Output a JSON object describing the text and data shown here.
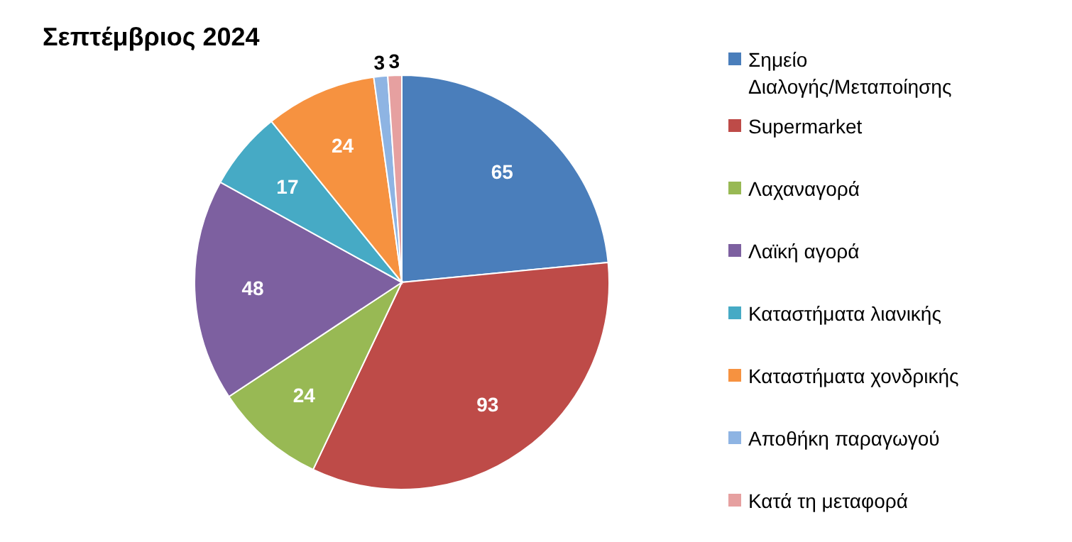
{
  "chart_data": {
    "type": "pie",
    "title": "Σεπτέμβριος 2024",
    "categories": [
      "Σημείο Διαλογής/Μεταποίησης",
      "Supermarket",
      "Λαχαναγορά",
      "Λαϊκή αγορά",
      "Καταστήματα λιανικής",
      "Καταστήματα χονδρικής",
      "Αποθήκη παραγωγού",
      "Κατά τη μεταφορά"
    ],
    "values": [
      65,
      93,
      24,
      48,
      17,
      24,
      3,
      3
    ],
    "colors": [
      "#4a7ebb",
      "#be4b48",
      "#98b954",
      "#7d60a0",
      "#46aac5",
      "#f69240",
      "#8eb4e3",
      "#e6a0a0"
    ],
    "data_labels": true,
    "legend": "right"
  }
}
